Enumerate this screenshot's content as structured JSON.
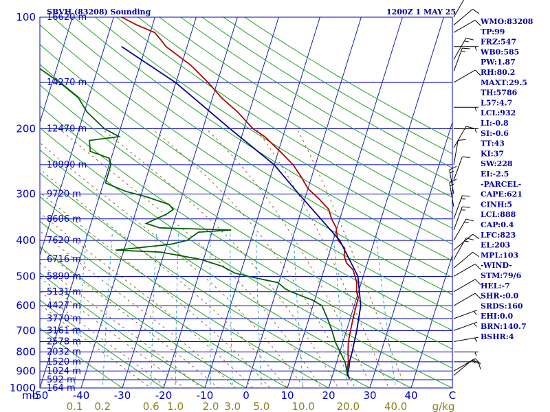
{
  "header": {
    "station": "SBVH (83208) Sounding",
    "time": "1200Z  1 MAY 25"
  },
  "chart_data": {
    "type": "line",
    "subtype": "skew-t log-p sounding",
    "xlim": [
      -50,
      50
    ],
    "ylim": [
      1000,
      100
    ],
    "y_scale": "log",
    "x_unit": "C",
    "y_unit": "mb",
    "pressure_ticks": [
      {
        "p": 100,
        "label": "100"
      },
      {
        "p": 200,
        "label": "200"
      },
      {
        "p": 300,
        "label": "300"
      },
      {
        "p": 400,
        "label": "400"
      },
      {
        "p": 500,
        "label": "500"
      },
      {
        "p": 600,
        "label": "600"
      },
      {
        "p": 700,
        "label": "700"
      },
      {
        "p": 800,
        "label": "800"
      },
      {
        "p": 900,
        "label": "900"
      },
      {
        "p": 1000,
        "label": "1000"
      }
    ],
    "height_labels": [
      {
        "p": 100,
        "label": "16620 m"
      },
      {
        "p": 150,
        "label": "14270 m"
      },
      {
        "p": 200,
        "label": "12470 m"
      },
      {
        "p": 250,
        "label": "10990 m"
      },
      {
        "p": 300,
        "label": "9720 m"
      },
      {
        "p": 350,
        "label": "8606 m"
      },
      {
        "p": 400,
        "label": "7620 m"
      },
      {
        "p": 450,
        "label": "6716 m"
      },
      {
        "p": 500,
        "label": "5890 m"
      },
      {
        "p": 550,
        "label": "5131 m"
      },
      {
        "p": 600,
        "label": "4427 m"
      },
      {
        "p": 650,
        "label": "3770 m"
      },
      {
        "p": 700,
        "label": "3161 m"
      },
      {
        "p": 750,
        "label": "2578 m"
      },
      {
        "p": 800,
        "label": "2032 m"
      },
      {
        "p": 850,
        "label": "1520 m"
      },
      {
        "p": 900,
        "label": "1024 m"
      },
      {
        "p": 950,
        "label": "592 m"
      },
      {
        "p": 1000,
        "label": "164 m"
      }
    ],
    "temp_ticks": [
      {
        "t": -50,
        "label": "-50"
      },
      {
        "t": -40,
        "label": "-40"
      },
      {
        "t": -30,
        "label": "-30"
      },
      {
        "t": -20,
        "label": "-20"
      },
      {
        "t": -10,
        "label": "-10"
      },
      {
        "t": 0,
        "label": "0"
      },
      {
        "t": 10,
        "label": "10"
      },
      {
        "t": 20,
        "label": "20"
      },
      {
        "t": 30,
        "label": "30"
      },
      {
        "t": 40,
        "label": "40"
      },
      {
        "t": 50,
        "label": "C"
      }
    ],
    "corner_unit_label": "mb",
    "mixing_ratio_labels": [
      {
        "w": 0.1,
        "label": "0.1"
      },
      {
        "w": 0.2,
        "label": "0.2"
      },
      {
        "w": 0.6,
        "label": "0.6"
      },
      {
        "w": 1.0,
        "label": "1.0"
      },
      {
        "w": 2.0,
        "label": "2.0"
      },
      {
        "w": 3.0,
        "label": "3.0"
      },
      {
        "w": 5.0,
        "label": "5.0"
      },
      {
        "w": 10.0,
        "label": "10.0"
      },
      {
        "w": 20.0,
        "label": "20.0"
      },
      {
        "w": 40.0,
        "label": "40.0"
      }
    ],
    "mixing_ratio_unit": "g/kg",
    "series": [
      {
        "color": "#b00000",
        "points": [
          [
            925,
            23.8
          ],
          [
            900,
            23.2
          ],
          [
            850,
            22.8
          ],
          [
            800,
            22
          ],
          [
            750,
            21.3
          ],
          [
            700,
            21
          ],
          [
            650,
            20.7
          ],
          [
            600,
            20.5
          ],
          [
            570,
            20.4
          ],
          [
            550,
            19.5
          ],
          [
            520,
            18.9
          ],
          [
            500,
            18
          ],
          [
            480,
            17
          ],
          [
            460,
            14.9
          ],
          [
            440,
            13.8
          ],
          [
            420,
            13.4
          ],
          [
            400,
            11.2
          ],
          [
            380,
            10.2
          ],
          [
            370,
            9.8
          ],
          [
            350,
            8
          ],
          [
            330,
            6.6
          ],
          [
            310,
            3.6
          ],
          [
            290,
            0
          ],
          [
            270,
            -2.5
          ],
          [
            250,
            -5.4
          ],
          [
            230,
            -9.6
          ],
          [
            210,
            -14.4
          ],
          [
            200,
            -17.8
          ],
          [
            180,
            -22.9
          ],
          [
            165,
            -27.8
          ],
          [
            150,
            -32.2
          ],
          [
            135,
            -37.6
          ],
          [
            120,
            -45.1
          ],
          [
            115,
            -46.9
          ],
          [
            110,
            -48.9
          ],
          [
            105,
            -53.8
          ],
          [
            100,
            -58.1
          ]
        ]
      },
      {
        "color": "#006000",
        "points": [
          [
            925,
            23.8
          ],
          [
            900,
            23.2
          ],
          [
            850,
            22
          ],
          [
            800,
            20.1
          ],
          [
            750,
            18.1
          ],
          [
            700,
            16.5
          ],
          [
            650,
            14.5
          ],
          [
            600,
            12.2
          ],
          [
            580,
            9.6
          ],
          [
            550,
            3.6
          ],
          [
            540,
            2
          ],
          [
            520,
            -0.2
          ],
          [
            500,
            -7.9
          ],
          [
            490,
            -11.4
          ],
          [
            470,
            -14.9
          ],
          [
            450,
            -20.7
          ],
          [
            430,
            -31
          ],
          [
            425,
            -42
          ],
          [
            410,
            -29.2
          ],
          [
            400,
            -25.4
          ],
          [
            380,
            -23.3
          ],
          [
            375,
            -15.5
          ],
          [
            370,
            -33
          ],
          [
            360,
            -36.6
          ],
          [
            340,
            -32.4
          ],
          [
            330,
            -31.1
          ],
          [
            320,
            -32.5
          ],
          [
            305,
            -38.6
          ],
          [
            295,
            -44
          ],
          [
            280,
            -49.5
          ],
          [
            250,
            -49.6
          ],
          [
            240,
            -50.5
          ],
          [
            230,
            -55.6
          ],
          [
            215,
            -56.6
          ],
          [
            210,
            -49.7
          ],
          [
            200,
            -53.8
          ],
          [
            180,
            -59.4
          ],
          [
            165,
            -62.5
          ],
          [
            150,
            -68.2
          ],
          [
            130,
            -77.9
          ],
          [
            120,
            -81
          ],
          [
            110,
            -79.6
          ],
          [
            100,
            -81.5
          ]
        ]
      },
      {
        "color": "#000090",
        "points": [
          [
            945,
            24.4
          ],
          [
            920,
            23.5
          ],
          [
            880,
            23.4
          ],
          [
            850,
            23.1
          ],
          [
            800,
            23
          ],
          [
            700,
            22.5
          ],
          [
            600,
            21.6
          ],
          [
            500,
            18.7
          ],
          [
            400,
            11.6
          ],
          [
            300,
            -1.8
          ],
          [
            250,
            -10
          ],
          [
            200,
            -23.4
          ],
          [
            150,
            -40.1
          ],
          [
            120,
            -55.9
          ]
        ]
      }
    ],
    "indices": [
      "WMO:83208",
      "TP:99",
      "FRZ:547",
      "WB0:585",
      "PW:1.87",
      "RH:80.2",
      "MAXT:29.5",
      "TH:5786",
      "L57:4.7",
      "LCL:932",
      "LI:-0.8",
      "SI:-0.6",
      "TT:43",
      "KI:37",
      "SW:228",
      "EI:-2.5",
      "-PARCEL-",
      "CAPE:621",
      "CINH:5",
      "LCL:888",
      "CAP:0.4",
      "LFC:823",
      "EL:203",
      "MPL:103",
      "-WIND-",
      "STM:79/6",
      "HEL:-7",
      "SHR-:0.0",
      "SRDS:160",
      "EHI:0.0",
      "BRN:140.7",
      "BSHR:4"
    ],
    "wind_profile": [
      {
        "p": 925,
        "dir": 50,
        "spd": 10
      },
      {
        "p": 900,
        "dir": 60,
        "spd": 15
      },
      {
        "p": 850,
        "dir": 90,
        "spd": 10
      },
      {
        "p": 800,
        "dir": 90,
        "spd": 5
      },
      {
        "p": 750,
        "dir": 80,
        "spd": 5
      },
      {
        "p": 700,
        "dir": 70,
        "spd": 5
      },
      {
        "p": 650,
        "dir": 70,
        "spd": 5
      },
      {
        "p": 600,
        "dir": 60,
        "spd": 10
      },
      {
        "p": 550,
        "dir": 60,
        "spd": 10
      },
      {
        "p": 500,
        "dir": 60,
        "spd": 10
      },
      {
        "p": 475,
        "dir": 50,
        "spd": 10
      },
      {
        "p": 450,
        "dir": 30,
        "spd": 15
      },
      {
        "p": 425,
        "dir": 50,
        "spd": 10
      },
      {
        "p": 400,
        "dir": 30,
        "spd": 15
      },
      {
        "p": 375,
        "dir": 20,
        "spd": 15
      },
      {
        "p": 350,
        "dir": 20,
        "spd": 15
      },
      {
        "p": 325,
        "dir": 350,
        "spd": 15
      },
      {
        "p": 300,
        "dir": 350,
        "spd": 15
      },
      {
        "p": 275,
        "dir": 20,
        "spd": 10
      },
      {
        "p": 250,
        "dir": 10,
        "spd": 10
      },
      {
        "p": 225,
        "dir": 30,
        "spd": 10
      },
      {
        "p": 200,
        "dir": 90,
        "spd": 5
      },
      {
        "p": 175,
        "dir": 90,
        "spd": 5
      },
      {
        "p": 150,
        "dir": 60,
        "spd": 10
      },
      {
        "p": 140,
        "dir": 20,
        "spd": 15
      },
      {
        "p": 130,
        "dir": 30,
        "spd": 15
      },
      {
        "p": 120,
        "dir": 90,
        "spd": 5
      },
      {
        "p": 110,
        "dir": 60,
        "spd": 10
      },
      {
        "p": 105,
        "dir": 50,
        "spd": 10
      },
      {
        "p": 100,
        "dir": 30,
        "spd": 15
      }
    ]
  }
}
